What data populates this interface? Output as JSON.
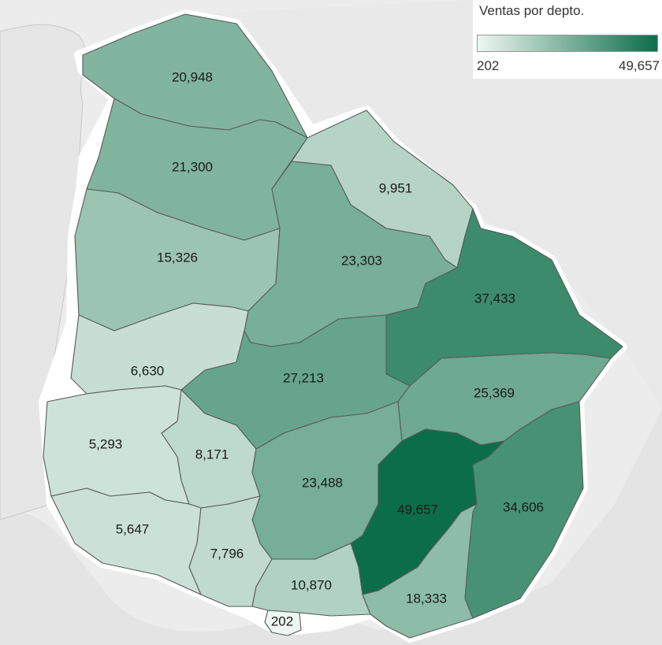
{
  "legend": {
    "title": "Ventas por depto.",
    "min_label": "202",
    "max_label": "49,657",
    "min_value": 202,
    "max_value": 49657,
    "color_low": "#eef6f1",
    "color_high": "#0b6e48"
  },
  "colors": {
    "background": "#ececec",
    "uruguay_land": "#ffffff",
    "river_plate": "#e7e7e7",
    "neighbor_land": "#e9e9e9",
    "border": "#5a5a5a"
  },
  "departments": [
    {
      "label": "20,948",
      "value": 20948
    },
    {
      "label": "21,300",
      "value": 21300
    },
    {
      "label": "15,326",
      "value": 15326
    },
    {
      "label": "9,951",
      "value": 9951
    },
    {
      "label": "23,303",
      "value": 23303
    },
    {
      "label": "37,433",
      "value": 37433
    },
    {
      "label": "6,630",
      "value": 6630
    },
    {
      "label": "27,213",
      "value": 27213
    },
    {
      "label": "25,369",
      "value": 25369
    },
    {
      "label": "5,293",
      "value": 5293
    },
    {
      "label": "8,171",
      "value": 8171
    },
    {
      "label": "23,488",
      "value": 23488
    },
    {
      "label": "49,657",
      "value": 49657
    },
    {
      "label": "34,606",
      "value": 34606
    },
    {
      "label": "5,647",
      "value": 5647
    },
    {
      "label": "7,796",
      "value": 7796
    },
    {
      "label": "10,870",
      "value": 10870
    },
    {
      "label": "18,333",
      "value": 18333
    },
    {
      "label": "202",
      "value": 202
    }
  ]
}
